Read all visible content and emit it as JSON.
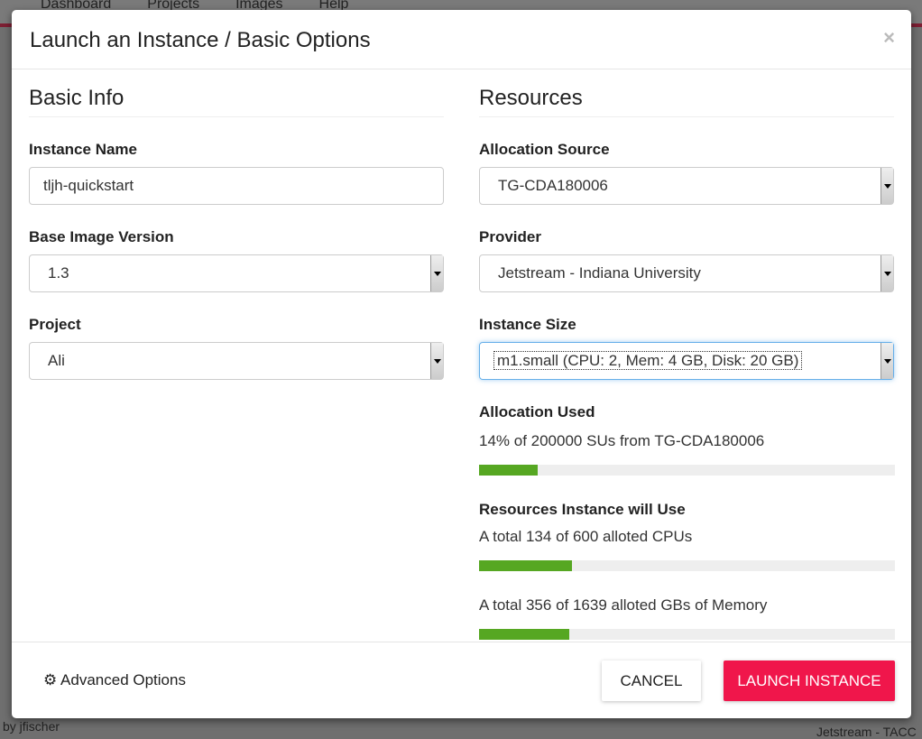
{
  "background": {
    "nav": [
      "Dashboard",
      "Projects",
      "Images",
      "Help"
    ],
    "footer_left": "by jfischer",
    "footer_right": "Jetstream - TACC"
  },
  "modal": {
    "title": "Launch an Instance / Basic Options",
    "close": "×"
  },
  "basic_info": {
    "heading": "Basic Info",
    "instance_name": {
      "label": "Instance Name",
      "value": "tljh-quickstart"
    },
    "base_image_version": {
      "label": "Base Image Version",
      "value": "1.3"
    },
    "project": {
      "label": "Project",
      "value": "Ali"
    }
  },
  "resources": {
    "heading": "Resources",
    "allocation_source": {
      "label": "Allocation Source",
      "value": "TG-CDA180006"
    },
    "provider": {
      "label": "Provider",
      "value": "Jetstream - Indiana University"
    },
    "instance_size": {
      "label": "Instance Size",
      "value": "m1.small (CPU: 2, Mem: 4 GB, Disk: 20 GB)"
    },
    "allocation_used": {
      "label": "Allocation Used",
      "text": "14% of 200000 SUs from TG-CDA180006",
      "percent": 14
    },
    "instance_will_use": {
      "label": "Resources Instance will Use",
      "cpu": {
        "text": "A total 134 of 600 alloted CPUs",
        "percent": 22.3
      },
      "memory": {
        "text": "A total 356 of 1639 alloted GBs of Memory",
        "percent": 21.7
      }
    }
  },
  "footer": {
    "advanced": "Advanced Options",
    "cancel": "CANCEL",
    "launch": "LAUNCH INSTANCE"
  },
  "colors": {
    "progress": "#56a722",
    "launch": "#f0164b"
  }
}
